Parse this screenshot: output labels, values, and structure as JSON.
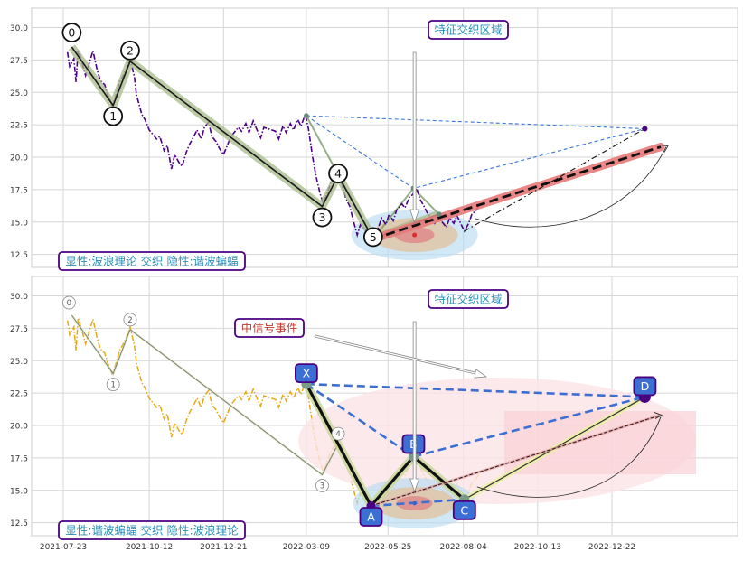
{
  "chart_data": [
    {
      "type": "line",
      "title": "",
      "ylim": [
        11.5,
        31.5
      ],
      "yticks": [
        12.5,
        15.0,
        17.5,
        20.0,
        22.5,
        25.0,
        27.5,
        30.0
      ],
      "ytick_labels": [
        "12.5",
        "15.0",
        "17.5",
        "20.0",
        "22.5",
        "25.0",
        "27.5",
        "30.0"
      ],
      "grid": true,
      "series_price": {
        "color": "#4b0082",
        "style": "dashdot",
        "points": [
          [
            "2021-07-27",
            28.1
          ],
          [
            "2021-07-29",
            27.0
          ],
          [
            "2021-08-02",
            27.6
          ],
          [
            "2021-08-04",
            25.8
          ],
          [
            "2021-08-06",
            28.3
          ],
          [
            "2021-08-10",
            27.2
          ],
          [
            "2021-08-13",
            26.3
          ],
          [
            "2021-08-17",
            27.4
          ],
          [
            "2021-08-20",
            28.2
          ],
          [
            "2021-08-24",
            26.7
          ],
          [
            "2021-08-27",
            25.9
          ],
          [
            "2021-08-31",
            25.6
          ],
          [
            "2021-09-03",
            24.8
          ],
          [
            "2021-09-07",
            24.0
          ],
          [
            "2021-09-10",
            24.6
          ],
          [
            "2021-09-14",
            25.8
          ],
          [
            "2021-09-17",
            26.2
          ],
          [
            "2021-09-21",
            26.9
          ],
          [
            "2021-09-24",
            27.6
          ],
          [
            "2021-09-28",
            26.2
          ],
          [
            "2021-09-30",
            24.8
          ],
          [
            "2021-10-05",
            23.3
          ],
          [
            "2021-10-08",
            22.9
          ],
          [
            "2021-10-12",
            22.1
          ],
          [
            "2021-10-15",
            21.8
          ],
          [
            "2021-10-19",
            21.4
          ],
          [
            "2021-10-22",
            21.6
          ],
          [
            "2021-10-26",
            20.5
          ],
          [
            "2021-10-29",
            20.9
          ],
          [
            "2021-11-02",
            19.1
          ],
          [
            "2021-11-05",
            20.2
          ],
          [
            "2021-11-09",
            19.6
          ],
          [
            "2021-11-12",
            19.3
          ],
          [
            "2021-11-16",
            20.4
          ],
          [
            "2021-11-19",
            21.0
          ],
          [
            "2021-11-23",
            21.6
          ],
          [
            "2021-11-26",
            22.1
          ],
          [
            "2021-11-30",
            21.4
          ],
          [
            "2021-12-03",
            22.3
          ],
          [
            "2021-12-07",
            22.7
          ],
          [
            "2021-12-10",
            21.6
          ],
          [
            "2021-12-14",
            21.2
          ],
          [
            "2021-12-17",
            20.7
          ],
          [
            "2021-12-21",
            20.2
          ],
          [
            "2021-12-24",
            20.8
          ],
          [
            "2021-12-28",
            21.6
          ],
          [
            "2022-01-04",
            22.3
          ],
          [
            "2022-01-07",
            22.0
          ],
          [
            "2022-01-11",
            22.6
          ],
          [
            "2022-01-14",
            21.9
          ],
          [
            "2022-01-18",
            22.8
          ],
          [
            "2022-01-21",
            22.2
          ],
          [
            "2022-01-25",
            21.5
          ],
          [
            "2022-01-28",
            22.3
          ],
          [
            "2022-02-08",
            22.0
          ],
          [
            "2022-02-11",
            21.4
          ],
          [
            "2022-02-15",
            22.4
          ],
          [
            "2022-02-18",
            21.9
          ],
          [
            "2022-02-22",
            22.6
          ],
          [
            "2022-02-25",
            22.1
          ],
          [
            "2022-03-01",
            22.9
          ],
          [
            "2022-03-04",
            22.4
          ],
          [
            "2022-03-08",
            23.3
          ],
          [
            "2022-03-11",
            22.2
          ],
          [
            "2022-03-15",
            20.0
          ],
          [
            "2022-03-18",
            18.6
          ],
          [
            "2022-03-22",
            17.2
          ],
          [
            "2022-03-25",
            16.4
          ],
          [
            "2022-03-29",
            17.3
          ],
          [
            "2022-04-01",
            18.0
          ],
          [
            "2022-04-06",
            18.6
          ],
          [
            "2022-04-08",
            18.8
          ],
          [
            "2022-04-12",
            17.8
          ],
          [
            "2022-04-15",
            16.9
          ],
          [
            "2022-04-19",
            16.2
          ],
          [
            "2022-04-22",
            15.2
          ],
          [
            "2022-04-26",
            14.0
          ],
          [
            "2022-04-29",
            14.8
          ],
          [
            "2022-05-05",
            14.3
          ],
          [
            "2022-05-09",
            13.8
          ],
          [
            "2022-05-12",
            13.5
          ],
          [
            "2022-05-16",
            14.6
          ],
          [
            "2022-05-19",
            15.3
          ],
          [
            "2022-05-23",
            14.8
          ],
          [
            "2022-05-26",
            15.6
          ],
          [
            "2022-05-30",
            15.1
          ],
          [
            "2022-06-02",
            15.9
          ],
          [
            "2022-06-07",
            16.4
          ],
          [
            "2022-06-10",
            16.1
          ],
          [
            "2022-06-14",
            16.9
          ],
          [
            "2022-06-17",
            17.1
          ],
          [
            "2022-06-21",
            17.6
          ],
          [
            "2022-06-24",
            16.8
          ],
          [
            "2022-06-28",
            16.2
          ],
          [
            "2022-07-01",
            15.7
          ],
          [
            "2022-07-05",
            15.3
          ],
          [
            "2022-07-08",
            14.9
          ],
          [
            "2022-07-12",
            15.4
          ],
          [
            "2022-07-15",
            15.0
          ],
          [
            "2022-07-19",
            14.6
          ],
          [
            "2022-07-22",
            15.3
          ],
          [
            "2022-07-26",
            14.9
          ],
          [
            "2022-07-29",
            15.5
          ],
          [
            "2022-08-02",
            14.8
          ],
          [
            "2022-08-05",
            14.3
          ],
          [
            "2022-08-09",
            14.9
          ],
          [
            "2022-08-12",
            15.6
          ],
          [
            "2022-08-16",
            15.9
          ],
          [
            "2022-08-19",
            16.3
          ]
        ]
      },
      "wave_points": [
        {
          "label": "0",
          "date": "2021-07-31",
          "value": 28.5
        },
        {
          "label": "1",
          "date": "2021-09-08",
          "value": 24.0
        },
        {
          "label": "2",
          "date": "2021-09-24",
          "value": 27.4
        },
        {
          "label": "3",
          "date": "2022-03-24",
          "value": 16.2
        },
        {
          "label": "4",
          "date": "2022-04-08",
          "value": 18.6
        },
        {
          "label": "5",
          "date": "2022-05-11",
          "value": 13.7
        }
      ],
      "wave_end": {
        "date": "2022-07-12",
        "value": 15.6
      },
      "forecast_line": {
        "start": {
          "date": "2022-05-11",
          "value": 13.7
        },
        "end": {
          "date": "2023-02-06",
          "value": 20.8
        }
      },
      "harmonic_dashed": {
        "start": {
          "date": "2022-03-09",
          "value": 23.2
        },
        "mid": {
          "date": "2022-06-18",
          "value": 17.6
        },
        "end": {
          "date": "2023-01-22",
          "value": 22.2
        }
      },
      "dashdot_line": {
        "start": {
          "date": "2022-08-05",
          "value": 14.3
        },
        "end": {
          "date": "2023-01-22",
          "value": 22.2
        }
      },
      "focus_point": {
        "date": "2022-06-19",
        "value": 14.0
      },
      "callouts": [
        {
          "text": "特征交织区域"
        },
        {
          "text": "显性:波浪理论 交织 隐性:谐波蝙蝠"
        }
      ]
    },
    {
      "type": "line",
      "title": "",
      "ylim": [
        11.5,
        31.5
      ],
      "yticks": [
        12.5,
        15.0,
        17.5,
        20.0,
        22.5,
        25.0,
        27.5,
        30.0
      ],
      "ytick_labels": [
        "12.5",
        "15.0",
        "17.5",
        "20.0",
        "22.5",
        "25.0",
        "27.5",
        "30.0"
      ],
      "xticks": [
        "2021-07-23",
        "2021-10-12",
        "2021-12-21",
        "2022-03-09",
        "2022-05-25",
        "2022-08-04",
        "2022-10-13",
        "2022-12-22"
      ],
      "xtick_labels": [
        "2021-07-23",
        "2021-10-12",
        "2021-12-21",
        "2022-03-09",
        "2022-05-25",
        "2022-08-04",
        "2022-10-13",
        "2022-12-22"
      ],
      "grid": true,
      "series_price": {
        "color": "#e6a817",
        "style": "dashdot",
        "same_as_panel": 0
      },
      "harmonic_points": [
        {
          "label": "X",
          "date": "2022-03-09",
          "value": 23.2
        },
        {
          "label": "A",
          "date": "2022-05-09",
          "value": 13.8
        },
        {
          "label": "B",
          "date": "2022-06-18",
          "value": 17.6
        },
        {
          "label": "C",
          "date": "2022-08-05",
          "value": 14.3
        },
        {
          "label": "D",
          "date": "2023-01-22",
          "value": 22.2
        }
      ],
      "callouts": [
        {
          "text": "特征交织区域"
        },
        {
          "text": "中信号事件"
        },
        {
          "text": "显性:谐波蝙蝠 交织 隐性:波浪理论"
        }
      ]
    }
  ]
}
